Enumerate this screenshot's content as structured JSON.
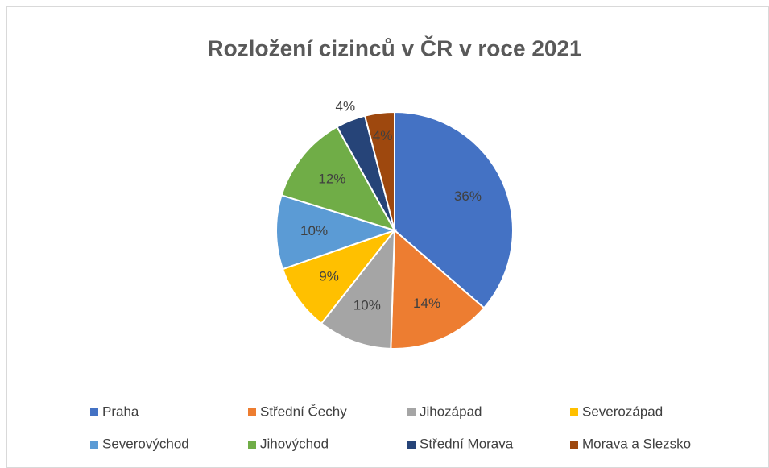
{
  "chart_data": {
    "type": "pie",
    "title": "Rozložení cizinců v ČR v roce 2021",
    "categories": [
      "Praha",
      "Střední Čechy",
      "Jihozápad",
      "Severozápad",
      "Severovýchod",
      "Jihovýchod",
      "Střední Morava",
      "Morava a Slezsko"
    ],
    "values": [
      36,
      14,
      10,
      9,
      10,
      12,
      4,
      4
    ],
    "value_labels": [
      "36%",
      "14%",
      "10%",
      "9%",
      "10%",
      "12%",
      "4%",
      "4%"
    ],
    "colors": [
      "#4472c4",
      "#ed7d31",
      "#a5a5a5",
      "#ffc000",
      "#5b9bd5",
      "#70ad47",
      "#264478",
      "#9e480e"
    ],
    "legend": "bottom"
  }
}
